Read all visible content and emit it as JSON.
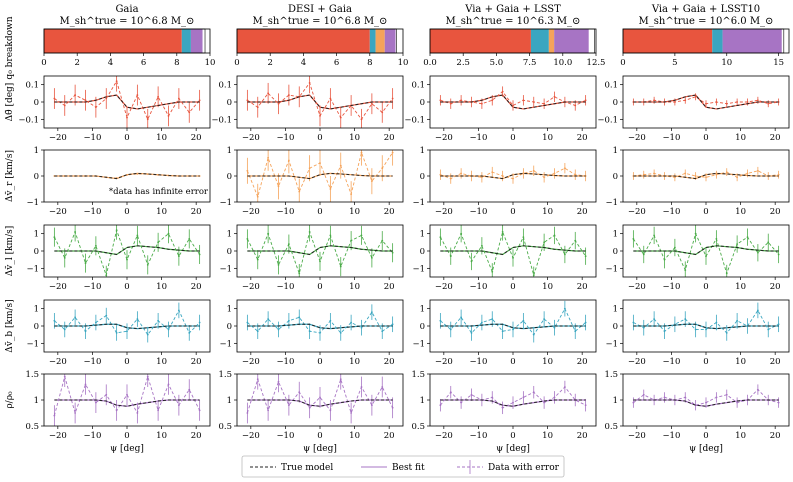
{
  "figure": {
    "columns": [
      {
        "title": "Gaia",
        "mass_label": "M_sh^true = 10^6.8 M_⊙"
      },
      {
        "title": "DESI + Gaia",
        "mass_label": "M_sh^true = 10^6.8 M_⊙"
      },
      {
        "title": "Via + Gaia + LSST",
        "mass_label": "M_sh^true = 10^6.3 M_⊙"
      },
      {
        "title": "Via + Gaia + LSST10",
        "mass_label": "M_sh^true = 10^6.0 M_⊙"
      }
    ],
    "row_labels": [
      "q₀ breakdown",
      "Δθ̄ [deg]",
      "Δv̄_r [km/s]",
      "Δv̄_l [km/s]",
      "Δv̄_b [km/s]",
      "ρ/ρ₀"
    ],
    "xlabel": "ψ [deg]",
    "annotation": "*data has infinite error",
    "legend": {
      "true_model": "True model",
      "best_fit": "Best fit",
      "data_with_error": "Data with error"
    },
    "colors": {
      "theta": "#e8553e",
      "vr": "#f5a35a",
      "vl": "#4aab48",
      "vb": "#3aa6c0",
      "rho": "#a774c4",
      "true": "#222222"
    }
  },
  "chart_data": {
    "type": "line",
    "x": [
      -21,
      -18,
      -15,
      -12,
      -9,
      -6,
      -3,
      0,
      3,
      6,
      9,
      12,
      15,
      18,
      21
    ],
    "breakdown": {
      "type": "bar",
      "segment_colors": [
        "#e8553e",
        "#3aa6c0",
        "#f5a35a",
        "#a774c4"
      ],
      "panels": [
        {
          "xlim": [
            0,
            10
          ],
          "ticks": [
            0,
            2,
            4,
            6,
            8,
            10
          ],
          "segments": [
            8.3,
            0.55,
            0,
            0.7
          ],
          "outline_end": 9.7
        },
        {
          "xlim": [
            0,
            10
          ],
          "ticks": [
            0,
            2,
            4,
            6,
            8,
            10
          ],
          "segments": [
            8.0,
            0.35,
            0.55,
            0.65
          ],
          "outline_end": 9.6
        },
        {
          "xlim": [
            0,
            12.5
          ],
          "ticks": [
            0,
            2.5,
            5.0,
            7.5,
            10.0,
            12.5
          ],
          "segments": [
            7.6,
            1.35,
            0.4,
            2.6
          ],
          "outline_end": 12.4
        },
        {
          "xlim": [
            0,
            16
          ],
          "ticks": [
            0,
            5,
            10,
            15
          ],
          "segments": [
            8.6,
            1.0,
            0,
            5.7
          ],
          "outline_end": 15.5
        }
      ]
    },
    "rows": [
      {
        "id": "theta",
        "ylim": [
          -0.15,
          0.15
        ],
        "yticks": [
          -0.1,
          0,
          0.1
        ],
        "true_model": [
          0,
          0,
          0,
          0,
          0.01,
          0.03,
          0.04,
          -0.03,
          -0.04,
          -0.03,
          -0.02,
          -0.01,
          0,
          0,
          0
        ],
        "panels": [
          {
            "data": [
              0.02,
              -0.02,
              0.04,
              0.01,
              -0.03,
              0.02,
              0.12,
              -0.09,
              0.04,
              -0.1,
              0.03,
              -0.08,
              0.02,
              -0.06,
              0.01
            ],
            "error": [
              0.06,
              0.06,
              0.06,
              0.06,
              0.06,
              0.06,
              0.06,
              0.06,
              0.06,
              0.06,
              0.06,
              0.06,
              0.06,
              0.06,
              0.06
            ]
          },
          {
            "data": [
              0.01,
              -0.03,
              0.05,
              -0.01,
              0.04,
              0.03,
              0.11,
              -0.08,
              0.02,
              -0.09,
              -0.02,
              -0.1,
              -0.01,
              -0.06,
              0.02
            ],
            "error": [
              0.06,
              0.06,
              0.06,
              0.06,
              0.06,
              0.06,
              0.06,
              0.06,
              0.06,
              0.06,
              0.06,
              0.06,
              0.06,
              0.06,
              0.06
            ]
          },
          {
            "data": [
              0.01,
              -0.01,
              0.01,
              0,
              -0.01,
              0.01,
              0.06,
              -0.02,
              0.01,
              0,
              -0.01,
              0.03,
              0,
              -0.02,
              0.01
            ],
            "error": [
              0.03,
              0.03,
              0.03,
              0.03,
              0.03,
              0.03,
              0.03,
              0.03,
              0.03,
              0.03,
              0.03,
              0.03,
              0.03,
              0.03,
              0.03
            ]
          },
          {
            "data": [
              0,
              0,
              0.01,
              0,
              0,
              0.01,
              0.03,
              -0.01,
              0,
              -0.01,
              0,
              0,
              0.01,
              -0.01,
              0
            ],
            "error": [
              0.02,
              0.02,
              0.02,
              0.02,
              0.02,
              0.02,
              0.02,
              0.02,
              0.02,
              0.02,
              0.02,
              0.02,
              0.02,
              0.02,
              0.02
            ]
          }
        ]
      },
      {
        "id": "vr",
        "ylim": [
          -1,
          1
        ],
        "yticks": [
          -1,
          0,
          1
        ],
        "true_model": [
          0,
          0,
          0,
          0,
          0,
          -0.05,
          -0.1,
          0.05,
          0.1,
          0.08,
          0.05,
          0.02,
          0,
          0,
          0
        ],
        "panels": [
          {
            "data": [
              0,
              0,
              0,
              0,
              0,
              -0.05,
              -0.08,
              0.04,
              0.08,
              0.07,
              0.04,
              0.02,
              0,
              0,
              0
            ],
            "error": [
              0,
              0,
              0,
              0,
              0,
              0,
              0,
              0,
              0,
              0,
              0,
              0,
              0,
              0,
              0
            ],
            "annotated": true
          },
          {
            "data": [
              0.2,
              -0.8,
              0.7,
              -0.4,
              0.6,
              -0.6,
              0.3,
              0.5,
              -0.5,
              0.4,
              -0.7,
              0.9,
              -0.2,
              0.3,
              0.9
            ],
            "error": [
              0.5,
              0.5,
              0.5,
              0.5,
              0.5,
              0.5,
              0.5,
              0.5,
              0.5,
              0.5,
              0.5,
              0.5,
              0.5,
              0.5,
              0.5
            ]
          },
          {
            "data": [
              0.05,
              -0.1,
              0.1,
              0,
              -0.05,
              0.15,
              0,
              -0.1,
              0.1,
              0.2,
              -0.05,
              0.1,
              0.3,
              0.05,
              0
            ],
            "error": [
              0.2,
              0.2,
              0.2,
              0.2,
              0.2,
              0.2,
              0.2,
              0.2,
              0.2,
              0.2,
              0.2,
              0.2,
              0.2,
              0.2,
              0.2
            ]
          },
          {
            "data": [
              0,
              0.05,
              0.1,
              0,
              -0.05,
              0.1,
              0,
              -0.05,
              0.05,
              0.15,
              -0.05,
              0.1,
              0.2,
              0,
              0.05
            ],
            "error": [
              0.15,
              0.15,
              0.15,
              0.15,
              0.15,
              0.15,
              0.15,
              0.15,
              0.15,
              0.15,
              0.15,
              0.15,
              0.15,
              0.15,
              0.15
            ]
          }
        ]
      },
      {
        "id": "vl",
        "ylim": [
          -1.5,
          1.5
        ],
        "yticks": [
          -1,
          0,
          1
        ],
        "true_model": [
          0,
          0,
          0,
          0,
          0,
          -0.1,
          -0.2,
          0.2,
          0.3,
          0.25,
          0.2,
          0.1,
          0.05,
          0,
          0
        ],
        "panels": [
          {
            "data": [
              0.8,
              -0.4,
              1.1,
              -0.7,
              0.3,
              -1.4,
              1.2,
              -0.5,
              0.9,
              -0.8,
              0.5,
              1.0,
              -0.3,
              0.7,
              -0.2
            ],
            "error": [
              0.55,
              0.55,
              0.55,
              0.55,
              0.55,
              0.55,
              0.55,
              0.55,
              0.55,
              0.55,
              0.55,
              0.55,
              0.55,
              0.55,
              0.55
            ]
          },
          {
            "data": [
              0.7,
              -0.5,
              1.0,
              -0.8,
              0.4,
              -1.3,
              1.1,
              -0.6,
              0.9,
              -0.9,
              0.6,
              0.9,
              -0.4,
              0.6,
              -0.1
            ],
            "error": [
              0.55,
              0.55,
              0.55,
              0.55,
              0.55,
              0.55,
              0.55,
              0.55,
              0.55,
              0.55,
              0.55,
              0.55,
              0.55,
              0.55,
              0.55
            ]
          },
          {
            "data": [
              0.8,
              -0.3,
              1.0,
              -0.6,
              0.3,
              -1.2,
              1.1,
              -0.4,
              0.8,
              -1.4,
              0.5,
              0.9,
              -0.2,
              0.6,
              -0.3
            ],
            "error": [
              0.5,
              0.5,
              0.5,
              0.5,
              0.5,
              0.5,
              0.5,
              0.5,
              0.5,
              0.5,
              0.5,
              0.5,
              0.5,
              0.5,
              0.5
            ]
          },
          {
            "data": [
              0.7,
              -0.2,
              0.9,
              -0.5,
              0.2,
              -1.1,
              1.0,
              -0.3,
              0.7,
              -1.3,
              0.4,
              0.8,
              -0.1,
              0.5,
              -0.2
            ],
            "error": [
              0.5,
              0.5,
              0.5,
              0.5,
              0.5,
              0.5,
              0.5,
              0.5,
              0.5,
              0.5,
              0.5,
              0.5,
              0.5,
              0.5,
              0.5
            ]
          }
        ]
      },
      {
        "id": "vb",
        "ylim": [
          -1.5,
          1.5
        ],
        "yticks": [
          -1,
          0,
          1
        ],
        "true_model": [
          0,
          0,
          0,
          0,
          0.05,
          0.1,
          0.1,
          -0.1,
          -0.15,
          -0.1,
          -0.05,
          0,
          0,
          0,
          0
        ],
        "panels": [
          {
            "data": [
              0.3,
              -0.2,
              0.5,
              -0.3,
              0.2,
              0.6,
              -0.4,
              -0.3,
              0.4,
              -0.5,
              0.3,
              -0.2,
              0.9,
              -0.4,
              0.2
            ],
            "error": [
              0.45,
              0.45,
              0.45,
              0.45,
              0.45,
              0.45,
              0.45,
              0.45,
              0.45,
              0.45,
              0.45,
              0.45,
              0.45,
              0.45,
              0.45
            ]
          },
          {
            "data": [
              0.2,
              -0.3,
              0.4,
              -0.2,
              0.3,
              0.5,
              -0.3,
              -0.4,
              0.3,
              -0.4,
              0.2,
              -0.1,
              0.8,
              -0.3,
              0.1
            ],
            "error": [
              0.45,
              0.45,
              0.45,
              0.45,
              0.45,
              0.45,
              0.45,
              0.45,
              0.45,
              0.45,
              0.45,
              0.45,
              0.45,
              0.45,
              0.45
            ]
          },
          {
            "data": [
              0.3,
              -0.2,
              0.5,
              -0.4,
              0.2,
              0.4,
              -0.3,
              -0.2,
              0.3,
              -0.5,
              0.4,
              -0.1,
              1.0,
              -0.3,
              0.2
            ],
            "error": [
              0.45,
              0.45,
              0.45,
              0.45,
              0.45,
              0.45,
              0.45,
              0.45,
              0.45,
              0.45,
              0.45,
              0.45,
              0.45,
              0.45,
              0.45
            ]
          },
          {
            "data": [
              0.2,
              -0.1,
              0.4,
              -0.3,
              0.1,
              0.4,
              -0.2,
              -0.2,
              0.2,
              -0.4,
              0.3,
              0,
              0.9,
              -0.2,
              0.1
            ],
            "error": [
              0.45,
              0.45,
              0.45,
              0.45,
              0.45,
              0.45,
              0.45,
              0.45,
              0.45,
              0.45,
              0.45,
              0.45,
              0.45,
              0.45,
              0.45
            ]
          }
        ]
      },
      {
        "id": "rho",
        "ylim": [
          0.5,
          1.5
        ],
        "yticks": [
          0.5,
          1.0,
          1.5
        ],
        "true_model": [
          1,
          1,
          1,
          1,
          1,
          0.98,
          0.9,
          0.88,
          0.92,
          0.95,
          0.98,
          1,
          1,
          1,
          1
        ],
        "panels": [
          {
            "data": [
              0.7,
              1.45,
              0.75,
              1.3,
              0.95,
              1.1,
              0.8,
              1.1,
              0.75,
              1.45,
              0.8,
              1.3,
              0.9,
              1.2,
              0.8
            ],
            "error": [
              0.2,
              0.2,
              0.2,
              0.2,
              0.2,
              0.2,
              0.2,
              0.2,
              0.2,
              0.2,
              0.2,
              0.2,
              0.2,
              0.2,
              0.2
            ]
          },
          {
            "data": [
              0.75,
              1.4,
              0.8,
              1.35,
              0.9,
              1.15,
              0.85,
              1.05,
              0.8,
              1.4,
              0.75,
              1.25,
              0.9,
              1.25,
              0.85
            ],
            "error": [
              0.2,
              0.2,
              0.2,
              0.2,
              0.2,
              0.2,
              0.2,
              0.2,
              0.2,
              0.2,
              0.2,
              0.2,
              0.2,
              0.2,
              0.2
            ]
          },
          {
            "data": [
              0.9,
              1.15,
              0.95,
              1.1,
              1.0,
              1.05,
              0.85,
              0.95,
              1.05,
              1.15,
              0.95,
              1.05,
              1.25,
              1.0,
              0.9
            ],
            "error": [
              0.12,
              0.12,
              0.12,
              0.12,
              0.12,
              0.12,
              0.12,
              0.12,
              0.12,
              0.12,
              0.12,
              0.12,
              0.12,
              0.12,
              0.12
            ]
          },
          {
            "data": [
              0.95,
              1.1,
              1.0,
              1.05,
              1.0,
              1.05,
              0.9,
              0.95,
              1.05,
              1.1,
              0.95,
              1.0,
              1.2,
              1.0,
              0.95
            ],
            "error": [
              0.1,
              0.1,
              0.1,
              0.1,
              0.1,
              0.1,
              0.1,
              0.1,
              0.1,
              0.1,
              0.1,
              0.1,
              0.1,
              0.1,
              0.1
            ]
          }
        ]
      }
    ],
    "xlim": [
      -24,
      24
    ],
    "xticks": [
      -20,
      -10,
      0,
      10,
      20
    ]
  }
}
